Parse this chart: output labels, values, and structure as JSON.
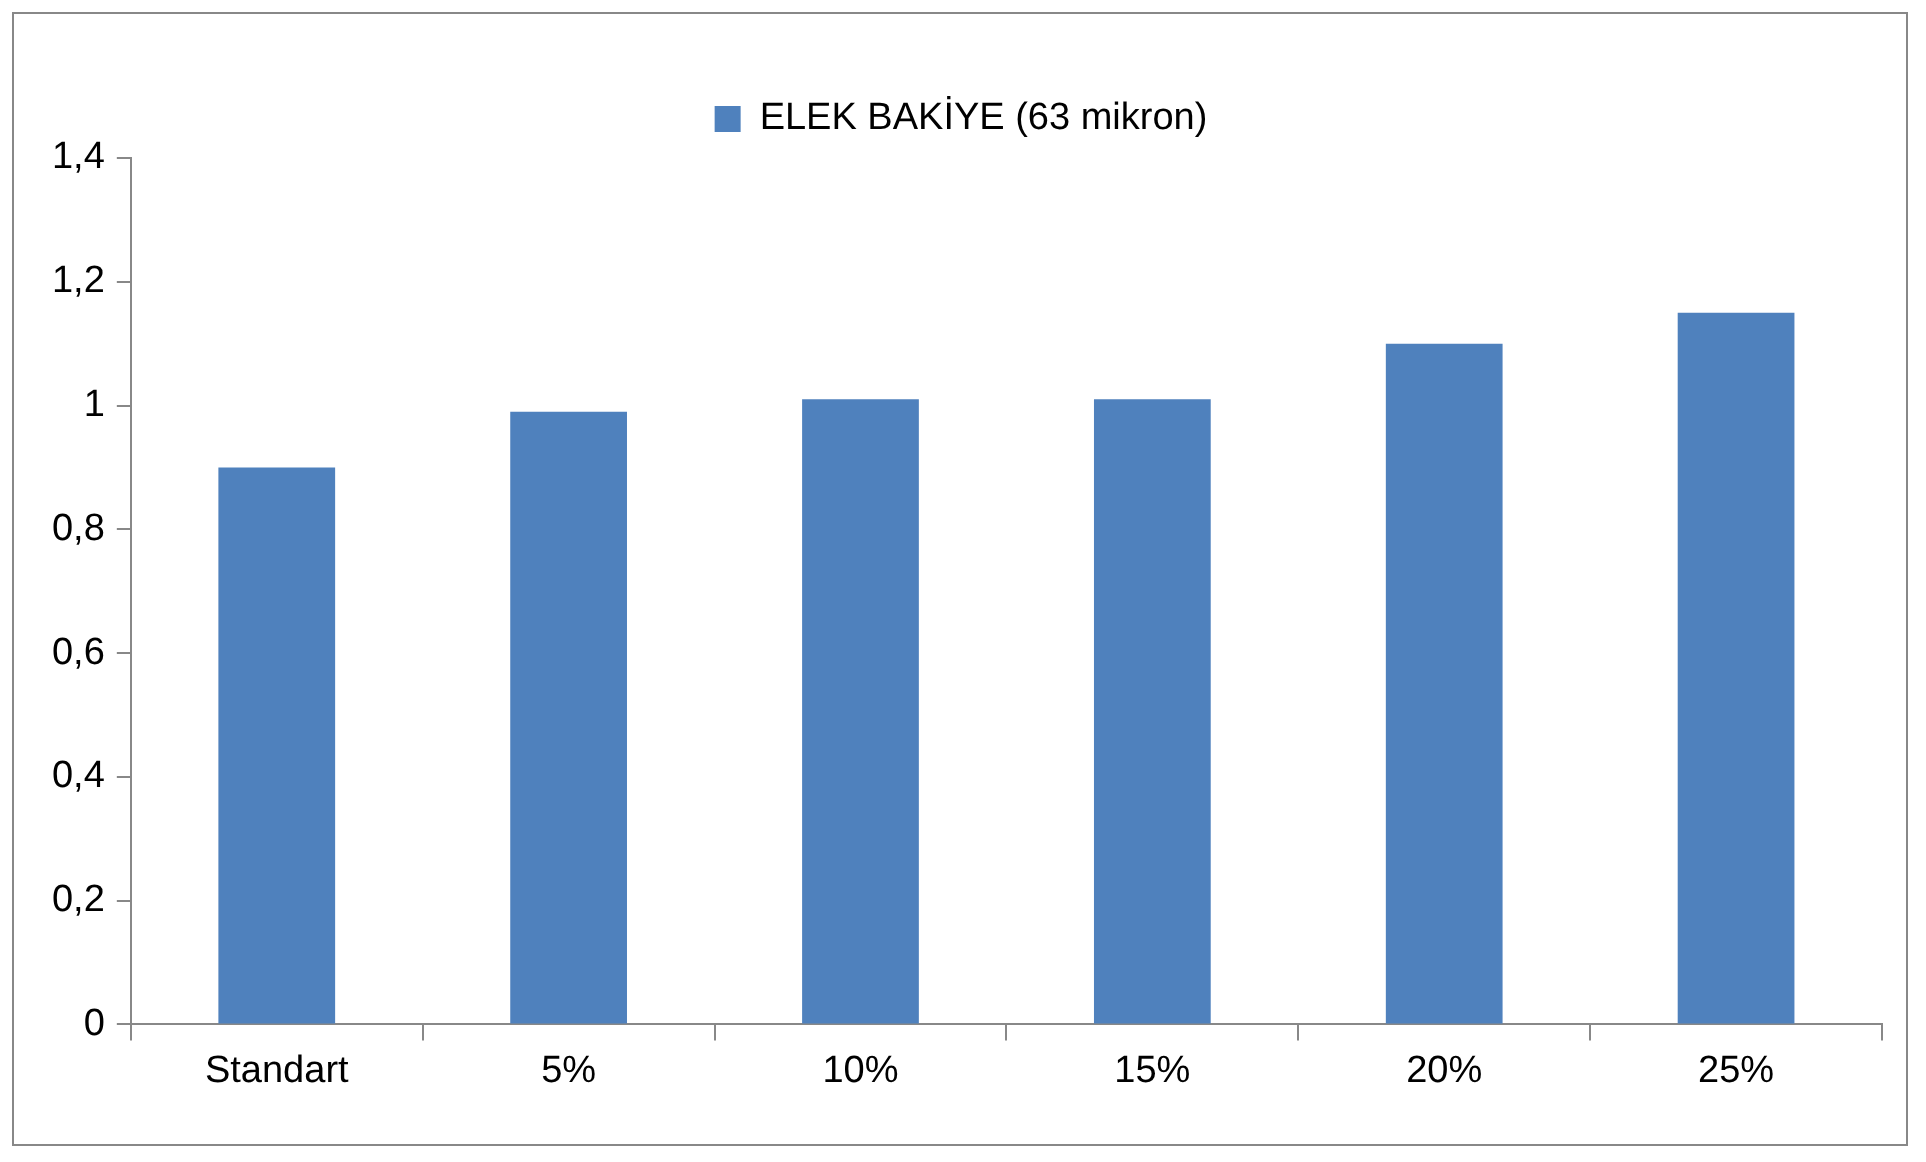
{
  "chart_data": {
    "type": "bar",
    "categories": [
      "Standart",
      "5%",
      "10%",
      "15%",
      "20%",
      "25%"
    ],
    "series": [
      {
        "name": "ELEK BAKİYE (63 mikron)",
        "color": "#4f81bd",
        "values": [
          0.9,
          0.99,
          1.01,
          1.01,
          1.1,
          1.15
        ]
      }
    ],
    "ylim": [
      0,
      1.4
    ],
    "yticks": [
      0,
      {
        "value": 0.2,
        "label": "0,2"
      },
      {
        "value": 0.4,
        "label": "0,4"
      },
      {
        "value": 0.6,
        "label": "0,6"
      },
      {
        "value": 0.8,
        "label": "0,8"
      },
      1,
      {
        "value": 1.2,
        "label": "1,2"
      },
      {
        "value": 1.4,
        "label": "1,4"
      }
    ],
    "grid": false,
    "legend": "top"
  }
}
